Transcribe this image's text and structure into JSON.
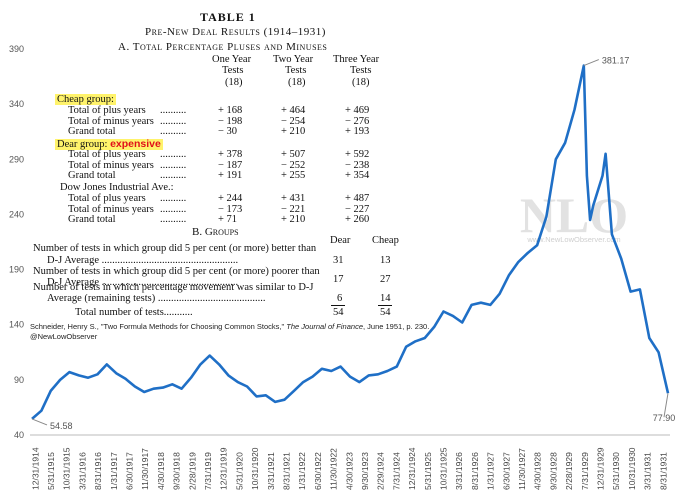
{
  "chart_data": {
    "type": "line",
    "title": "",
    "xlabel": "",
    "ylabel": "",
    "ylim": [
      40,
      400
    ],
    "yticks": [
      "40",
      "90",
      "140",
      "190",
      "240",
      "290",
      "340",
      "390"
    ],
    "grid": false,
    "line_color": "#1f6fc6",
    "xticks": [
      "12/31/1914",
      "5/31/1915",
      "10/31/1915",
      "3/31/1916",
      "8/31/1916",
      "1/31/1917",
      "6/30/1917",
      "11/30/1917",
      "4/30/1918",
      "9/30/1918",
      "2/28/1919",
      "7/31/1919",
      "12/31/1919",
      "5/31/1920",
      "10/31/1920",
      "3/31/1921",
      "8/31/1921",
      "1/31/1922",
      "6/30/1922",
      "11/30/1922",
      "4/30/1923",
      "9/30/1923",
      "2/29/1924",
      "7/31/1924",
      "12/31/1924",
      "5/31/1925",
      "10/31/1925",
      "3/31/1926",
      "8/31/1926",
      "1/31/1927",
      "6/30/1927",
      "11/30/1927",
      "4/30/1928",
      "9/30/1928",
      "2/28/1929",
      "7/31/1929",
      "12/31/1929",
      "5/31/1930",
      "10/31/1930",
      "3/31/1931",
      "8/31/1931"
    ],
    "x": [
      "1914-12",
      "1915-03",
      "1915-06",
      "1915-09",
      "1915-12",
      "1916-03",
      "1916-06",
      "1916-09",
      "1916-12",
      "1917-03",
      "1917-06",
      "1917-09",
      "1917-12",
      "1918-03",
      "1918-06",
      "1918-09",
      "1918-12",
      "1919-03",
      "1919-06",
      "1919-09",
      "1919-12",
      "1920-03",
      "1920-06",
      "1920-09",
      "1920-12",
      "1921-03",
      "1921-06",
      "1921-09",
      "1921-12",
      "1922-03",
      "1922-06",
      "1922-09",
      "1922-12",
      "1923-03",
      "1923-06",
      "1923-09",
      "1923-12",
      "1924-03",
      "1924-06",
      "1924-09",
      "1924-12",
      "1925-03",
      "1925-06",
      "1925-09",
      "1925-12",
      "1926-03",
      "1926-06",
      "1926-09",
      "1926-12",
      "1927-03",
      "1927-06",
      "1927-09",
      "1927-12",
      "1928-03",
      "1928-06",
      "1928-09",
      "1928-12",
      "1929-03",
      "1929-06",
      "1929-09",
      "1929-10",
      "1929-11",
      "1929-12",
      "1930-03",
      "1930-04",
      "1930-06",
      "1930-09",
      "1930-12",
      "1931-03",
      "1931-06",
      "1931-09",
      "1931-12"
    ],
    "values": [
      54.58,
      62,
      80,
      90,
      97,
      94,
      92,
      95,
      104,
      96,
      91,
      84,
      79,
      82,
      83,
      86,
      82,
      92,
      104,
      112,
      104,
      94,
      88,
      84,
      75,
      76,
      70,
      72,
      80,
      88,
      93,
      100,
      98,
      102,
      93,
      88,
      94,
      95,
      98,
      102,
      120,
      125,
      128,
      138,
      152,
      148,
      142,
      158,
      160,
      158,
      168,
      185,
      197,
      205,
      212,
      238,
      290,
      305,
      335,
      375,
      275,
      235,
      248,
      275,
      295,
      222,
      200,
      170,
      172,
      128,
      115,
      77.9
    ],
    "annotations": {
      "start": "54.58",
      "peak": "381.17",
      "end": "77.90"
    },
    "watermark": "NLO",
    "watermark_url": "www.NewLowObserver.com"
  },
  "source": {
    "line1_prefix": "Schneider, Henry S., \"Two Formula Methods for Choosing Common Stocks,\"",
    "line1_journal": "The Journal of Finance",
    "line1_suffix": ", June 1951, p. 230.",
    "line2": "@NewLowObserver"
  },
  "table": {
    "title": "TABLE 1",
    "subtitle": "Pre-New Deal Results (1914–1931)",
    "section_a": "A. Total Percentage Pluses and Minuses",
    "col_heads": [
      "One Year",
      "Two Year",
      "Three Year"
    ],
    "col_subheads": [
      "Tests",
      "Tests",
      "Tests"
    ],
    "col_n": [
      "(18)",
      "(18)",
      "(18)"
    ],
    "cheap_group": "Cheap group:",
    "dear_group": "Dear group:",
    "dear_tag": "expensive",
    "dj_group": "Dow Jones Industrial Ave.:",
    "row_plus": "Total of plus years",
    "row_minus": "Total of minus years",
    "row_grand": "Grand total",
    "dots": "..........",
    "cheap_vals": [
      [
        "+ 168",
        "+ 464",
        "+ 469"
      ],
      [
        "− 198",
        "− 254",
        "− 276"
      ],
      [
        "− 30",
        "+ 210",
        "+ 193"
      ]
    ],
    "dear_vals": [
      [
        "+ 378",
        "+ 507",
        "+ 592"
      ],
      [
        "− 187",
        "− 252",
        "− 238"
      ],
      [
        "+ 191",
        "+ 255",
        "+ 354"
      ]
    ],
    "dj_vals": [
      [
        "+ 244",
        "+ 431",
        "+ 487"
      ],
      [
        "− 173",
        "− 221",
        "− 227"
      ],
      [
        "+ 71",
        "+ 210",
        "+ 260"
      ]
    ],
    "section_b": "B. Groups",
    "b_head_dear": "Dear",
    "b_head_cheap": "Cheap",
    "b1a": "Number of tests in which group did 5 per cent (or more) better than",
    "b1b": "D-J Average ....................................................",
    "b1_vals": [
      "31",
      "13"
    ],
    "b2a": "Number of tests in which group did 5 per cent (or more) poorer than",
    "b2b": "D-J Average ....................................................",
    "b2_vals": [
      "17",
      "27"
    ],
    "b3a": "Number of tests in which percentage movement was similar to D-J",
    "b3b": "Average (remaining tests) .........................................",
    "b3_vals": [
      "6",
      "14"
    ],
    "b_total": "Total number of tests...........",
    "b_total_vals": [
      "54",
      "54"
    ]
  }
}
